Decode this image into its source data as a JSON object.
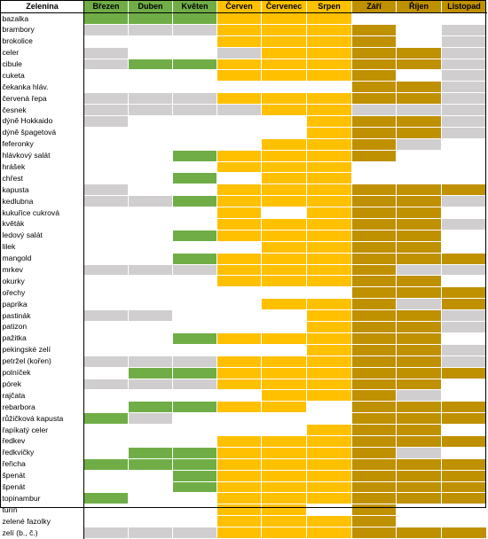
{
  "colors": {
    "green": "#70ad47",
    "yellow": "#ffc000",
    "brown": "#bf9000",
    "gray": "#d0cece",
    "white": "#ffffff"
  },
  "header": {
    "name_label": "Zelenina",
    "months": [
      {
        "label": "Březen",
        "color": "#70ad47"
      },
      {
        "label": "Duben",
        "color": "#70ad47"
      },
      {
        "label": "Květen",
        "color": "#70ad47"
      },
      {
        "label": "Červen",
        "color": "#ffc000"
      },
      {
        "label": "Červenec",
        "color": "#ffc000"
      },
      {
        "label": "Srpen",
        "color": "#ffc000"
      },
      {
        "label": "Září",
        "color": "#bf9000"
      },
      {
        "label": "Říjen",
        "color": "#bf9000"
      },
      {
        "label": "Listopad",
        "color": "#bf9000"
      }
    ]
  },
  "rows": [
    {
      "name": "bazalka",
      "cells": "GGGYYYWWW"
    },
    {
      "name": "brambory",
      "cells": "SSSYYYBWS"
    },
    {
      "name": "brokolice",
      "cells": "WWWYYYBWS"
    },
    {
      "name": "celer",
      "cells": "SWWSYYBBS"
    },
    {
      "name": "cibule",
      "cells": "SGGYYYBBS"
    },
    {
      "name": "cuketa",
      "cells": "WWWYYYBWS"
    },
    {
      "name": "čekanka hláv.",
      "cells": "WWWWWWBBS"
    },
    {
      "name": "červená řepa",
      "cells": "SSSYYYBBS"
    },
    {
      "name": "česnek",
      "cells": "SSSSYYSSS"
    },
    {
      "name": "dýně Hokkaido",
      "cells": "SWWWWYBBS"
    },
    {
      "name": "dýně špagetová",
      "cells": "WWWWWYBBS"
    },
    {
      "name": "feferonky",
      "cells": "WWWWYYBSW"
    },
    {
      "name": "hlávkový salát",
      "cells": "WWGYYYBWW"
    },
    {
      "name": "hrášek",
      "cells": "WWWYYYWWW"
    },
    {
      "name": "chřest",
      "cells": "WWGWYYWWW"
    },
    {
      "name": "kapusta",
      "cells": "SWWYYYBBB"
    },
    {
      "name": "kedlubna",
      "cells": "SSGYYYBBS"
    },
    {
      "name": "kukuřice cukrová",
      "cells": "WWWYWYBBW"
    },
    {
      "name": "květák",
      "cells": "WWWYYYBBS"
    },
    {
      "name": "ledový salát",
      "cells": "WWGYYYBBW"
    },
    {
      "name": "lilek",
      "cells": "WWWWYYBBW"
    },
    {
      "name": "mangold",
      "cells": "WWGYYYBBB"
    },
    {
      "name": "mrkev",
      "cells": "SSSYYYBSS"
    },
    {
      "name": "okurky",
      "cells": "WWWYYYBBW"
    },
    {
      "name": "ořechy",
      "cells": "WWWWWWBBB"
    },
    {
      "name": "paprika",
      "cells": "WWWWYYBSB"
    },
    {
      "name": "pastinák",
      "cells": "SSWWWYBBS"
    },
    {
      "name": "patizon",
      "cells": "WWWWWYBBS"
    },
    {
      "name": "pažitka",
      "cells": "WWGYYYBBW"
    },
    {
      "name": "pekingské zelí",
      "cells": "WWWWWYBBS"
    },
    {
      "name": "petržel (kořen)",
      "cells": "SSSYYYBBS"
    },
    {
      "name": "polníček",
      "cells": "WGGYYYBBB"
    },
    {
      "name": "pórek",
      "cells": "SSSYYYBBW"
    },
    {
      "name": "rajčata",
      "cells": "WWWWYYBSW"
    },
    {
      "name": "rebarbora",
      "cells": "WGGYYWBBB"
    },
    {
      "name": "růžičková kapusta",
      "cells": "GSWWWWBBB"
    },
    {
      "name": "řapíkatý celer",
      "cells": "WWWWWYBBW"
    },
    {
      "name": "ředkev",
      "cells": "WWWYYYBBB"
    },
    {
      "name": "ředkvičky",
      "cells": "WGGYYYBSW"
    },
    {
      "name": "řeřicha",
      "cells": "GGGYYYBBB"
    },
    {
      "name": "špenát",
      "cells": "WWGYYYBBB"
    },
    {
      "name": "špenát",
      "cells": "WWGYYYBBB"
    },
    {
      "name": "topinambur",
      "cells": "GWWYYYBBB"
    },
    {
      "name": "tuřín",
      "cells": "WWWYYWBWW"
    },
    {
      "name": "zelené fazolky",
      "cells": "WWWYYYBWW"
    },
    {
      "name": "zelí (b., č.)",
      "cells": "SSSYYYBBB"
    }
  ]
}
